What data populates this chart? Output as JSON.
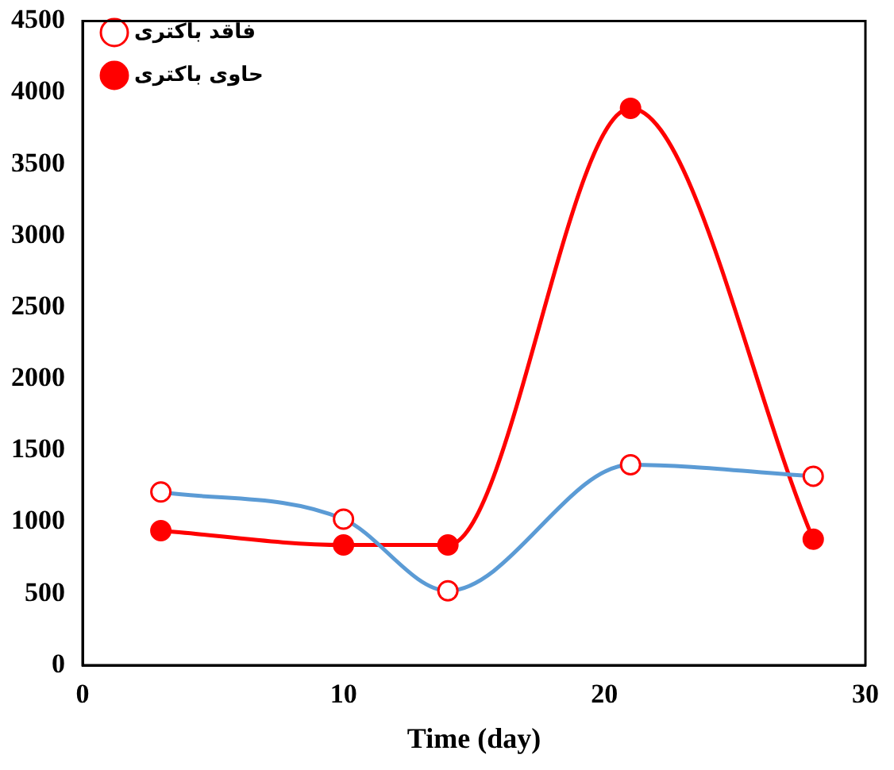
{
  "chart_data": {
    "type": "line",
    "xlabel": "Time (day)",
    "xlim": [
      0,
      30
    ],
    "xticks": [
      0,
      10,
      20,
      30
    ],
    "ylim": [
      0,
      4500
    ],
    "yticks": [
      0,
      500,
      1000,
      1500,
      2000,
      2500,
      3000,
      3500,
      4000,
      4500
    ],
    "grid": false,
    "legend": "top left",
    "marker": "circle",
    "series": [
      {
        "name": "فاقد باکتری",
        "color": "#5b9bd5",
        "x": [
          3,
          10,
          14,
          21,
          28
        ],
        "values": [
          1210,
          1020,
          520,
          1400,
          1320
        ]
      },
      {
        "name": "حاوی باکتری",
        "color": "#ff0000",
        "x": [
          3,
          10,
          14,
          21,
          28
        ],
        "values": [
          940,
          840,
          840,
          3890,
          880
        ]
      }
    ]
  }
}
